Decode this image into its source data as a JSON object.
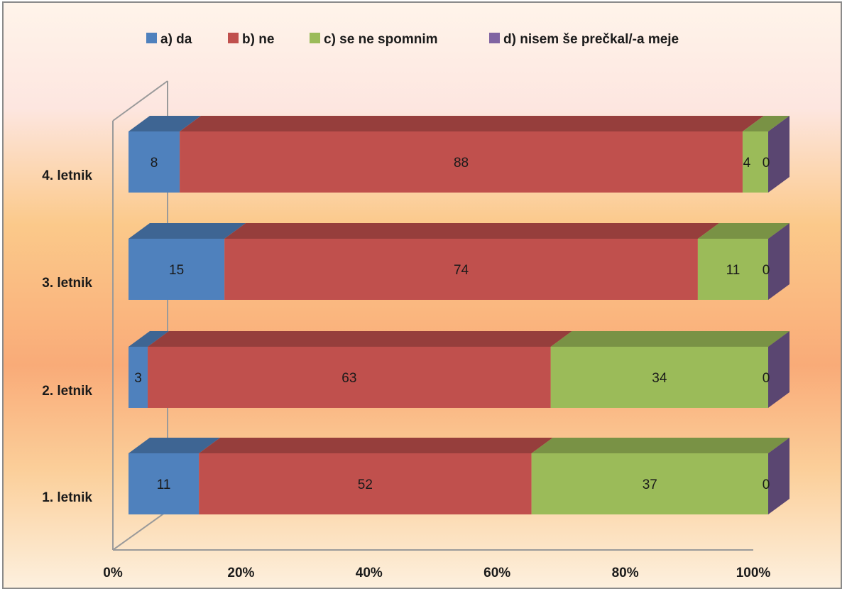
{
  "chart_data": {
    "type": "bar",
    "orientation": "horizontal",
    "stacked": "percent",
    "three_d": true,
    "categories": [
      "4. letnik",
      "3. letnik",
      "2. letnik",
      "1. letnik"
    ],
    "series": [
      {
        "name": "a) da",
        "color": "#4f81bd",
        "values": [
          8,
          15,
          3,
          11
        ]
      },
      {
        "name": "b) ne",
        "color": "#c0504d",
        "values": [
          88,
          74,
          63,
          52
        ]
      },
      {
        "name": "c) se ne spomnim",
        "color": "#9bbb59",
        "values": [
          4,
          11,
          34,
          37
        ]
      },
      {
        "name": "d) nisem še prečkal/-a meje",
        "color": "#8064a2",
        "values": [
          0,
          0,
          0,
          0
        ]
      }
    ],
    "x_ticks": [
      "0%",
      "20%",
      "40%",
      "60%",
      "80%",
      "100%"
    ],
    "xlim": [
      0,
      100
    ],
    "legend_position": "top",
    "grid": false
  }
}
